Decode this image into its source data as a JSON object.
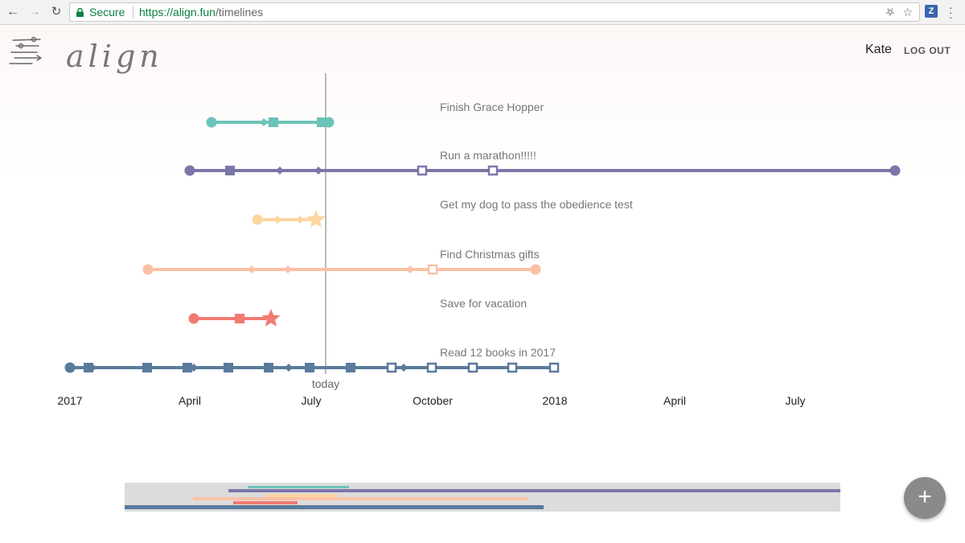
{
  "browser": {
    "secure_label": "Secure",
    "url_scheme": "https://",
    "url_host": "align.fun",
    "url_path": "/timelines",
    "extension_label": "Z"
  },
  "app": {
    "logo_text": "align",
    "user_name": "Kate",
    "logout_label": "LOG OUT",
    "today_label": "today",
    "add_button_label": "+"
  },
  "axis": {
    "ticks": [
      "2017",
      "April",
      "July",
      "October",
      "2018",
      "April",
      "July"
    ]
  },
  "goals": [
    {
      "title": "Finish Grace Hopper",
      "color": "#6cc3b9",
      "end_marker": "square-filled"
    },
    {
      "title": "Run a marathon!!!!!",
      "color": "#7b77a8",
      "end_marker": "circle"
    },
    {
      "title": "Get my dog to pass the obedience test",
      "color": "#fdd5a1",
      "end_marker": "star"
    },
    {
      "title": "Find Christmas gifts",
      "color": "#fbc1a6",
      "end_marker": "circle"
    },
    {
      "title": "Save for vacation",
      "color": "#f17a73",
      "end_marker": "star"
    },
    {
      "title": "Read 12 books in 2017",
      "color": "#5a7b9c",
      "end_marker": "square-open"
    }
  ],
  "minimap": {
    "background": "#dcdcdc"
  }
}
